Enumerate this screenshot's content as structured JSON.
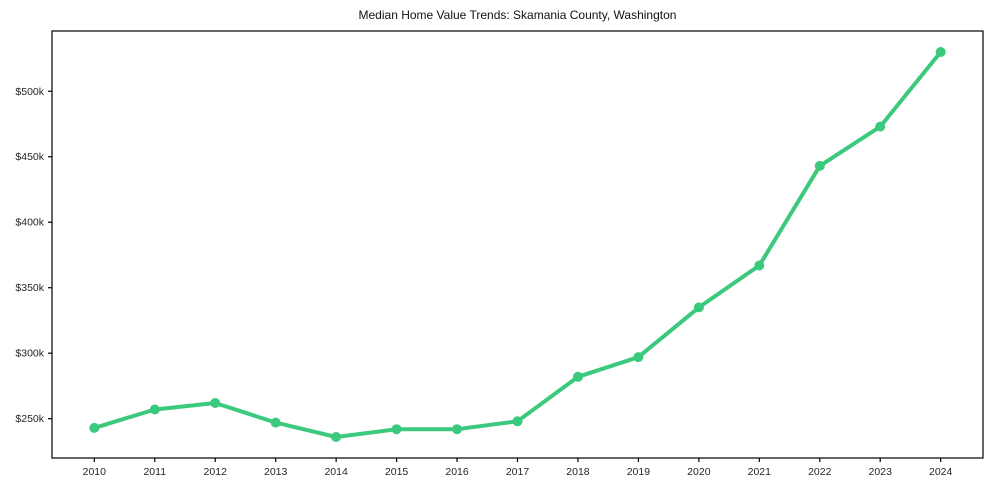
{
  "page": {
    "background": "#ffffff"
  },
  "chart_data": {
    "type": "line",
    "title": "Median Home Value Trends: Skamania County, Washington",
    "xlabel": "",
    "ylabel": "",
    "x": [
      2010,
      2011,
      2012,
      2013,
      2014,
      2015,
      2016,
      2017,
      2018,
      2019,
      2020,
      2021,
      2022,
      2023,
      2024
    ],
    "series": [
      {
        "name": "Median home value",
        "unit": "USD thousands",
        "values": [
          243,
          257,
          262,
          247,
          236,
          242,
          242,
          248,
          282,
          297,
          335,
          367,
          443,
          473,
          530
        ],
        "color": "#3bc97d",
        "marker": "circle",
        "line_width": 4,
        "marker_radius": 5
      }
    ],
    "xlim": [
      2009.3,
      2024.7
    ],
    "ylim": [
      220,
      546
    ],
    "y_ticks": [
      {
        "value": 250,
        "label": "$250k"
      },
      {
        "value": 300,
        "label": "$300k"
      },
      {
        "value": 350,
        "label": "$350k"
      },
      {
        "value": 400,
        "label": "$400k"
      },
      {
        "value": 450,
        "label": "$450k"
      },
      {
        "value": 500,
        "label": "$500k"
      }
    ],
    "grid": false,
    "legend": "none",
    "axis_color": "#000000",
    "tick_label_color": "#262626"
  }
}
